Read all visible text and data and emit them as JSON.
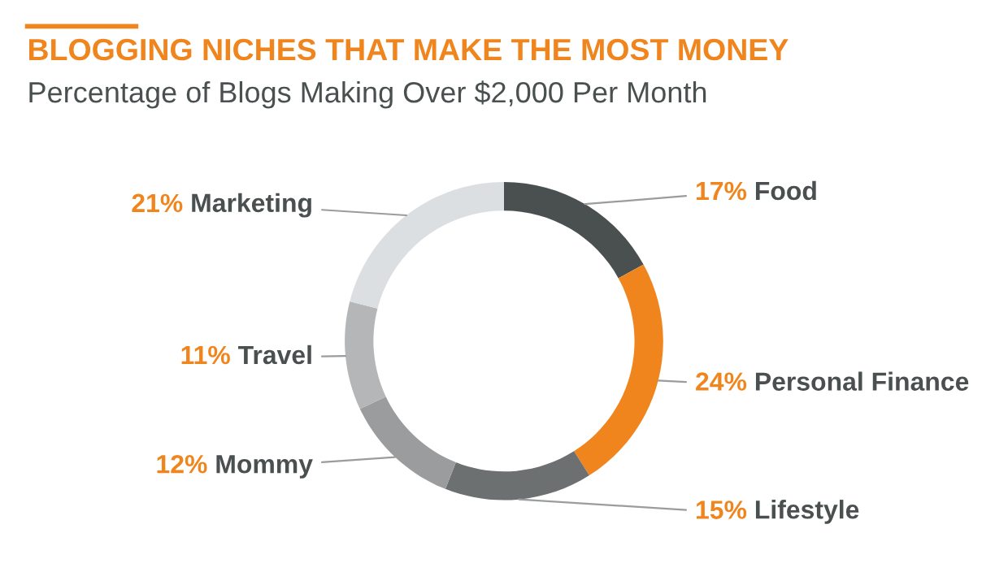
{
  "chart_data": {
    "type": "donut",
    "title": "BLOGGING NICHES THAT MAKE THE MOST MONEY",
    "subtitle": "Percentage of Blogs Making Over $2,000 Per Month",
    "categories": [
      "Food",
      "Personal Finance",
      "Lifestyle",
      "Mommy",
      "Travel",
      "Marketing"
    ],
    "values": [
      17,
      24,
      15,
      12,
      11,
      21
    ],
    "value_labels": [
      "17%",
      "24%",
      "15%",
      "12%",
      "11%",
      "21%"
    ],
    "colors": [
      "#4a4f4f",
      "#f0851e",
      "#6d7070",
      "#9a9c9d",
      "#b4b6b7",
      "#dcdfe2"
    ],
    "legend": false
  }
}
